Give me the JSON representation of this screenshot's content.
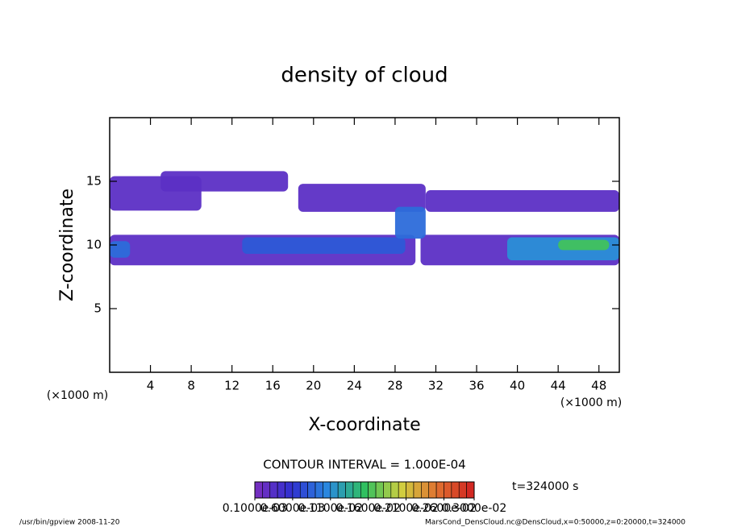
{
  "chart_data": {
    "type": "contour",
    "title": "density of cloud",
    "x_label": "X-coordinate",
    "y_label": "Z-coordinate",
    "x_unit": "(×1000 m)",
    "y_unit": "(×1000 m)",
    "xlim": [
      0,
      50
    ],
    "xticks": [
      4,
      8,
      12,
      16,
      20,
      24,
      28,
      32,
      36,
      40,
      44,
      48
    ],
    "ylim": [
      0,
      20
    ],
    "yticks": [
      5,
      10,
      15
    ],
    "regions": [
      {
        "x": [
          0,
          9
        ],
        "z": [
          12.7,
          15.4
        ],
        "value": 0.0003
      },
      {
        "x": [
          5,
          17.5
        ],
        "z": [
          14.2,
          15.8
        ],
        "value": 0.0003
      },
      {
        "x": [
          18.5,
          31
        ],
        "z": [
          12.6,
          14.8
        ],
        "value": 0.0003
      },
      {
        "x": [
          31,
          50
        ],
        "z": [
          12.6,
          14.3
        ],
        "value": 0.0003
      },
      {
        "x": [
          0,
          30
        ],
        "z": [
          8.4,
          10.8
        ],
        "value": 0.0003
      },
      {
        "x": [
          30.5,
          50
        ],
        "z": [
          8.4,
          10.8
        ],
        "value": 0.0003
      },
      {
        "x": [
          0,
          2
        ],
        "z": [
          9,
          10.3
        ],
        "value": 0.0009
      },
      {
        "x": [
          13,
          29
        ],
        "z": [
          9.3,
          10.6
        ],
        "value": 0.0008
      },
      {
        "x": [
          28,
          31
        ],
        "z": [
          10.5,
          13
        ],
        "value": 0.0009
      },
      {
        "x": [
          39,
          50
        ],
        "z": [
          8.8,
          10.6
        ],
        "value": 0.0011
      },
      {
        "x": [
          44,
          49
        ],
        "z": [
          9.6,
          10.4
        ],
        "value": 0.0016
      }
    ],
    "contour_interval": "CONTOUR INTERVAL = 1.000E-04",
    "time": "t=324000 s",
    "colormap": [
      "#7b2fbe",
      "#3030d0",
      "#2a8ae0",
      "#30c060",
      "#d0d040",
      "#e07030",
      "#d02020"
    ],
    "colorbar": {
      "lim": [
        0.0001,
        0.003
      ],
      "levels": [
        0.0001,
        0.0002,
        0.0003,
        0.0004,
        0.0005,
        0.0006,
        0.0007,
        0.0008,
        0.0009,
        0.001,
        0.0011,
        0.0012,
        0.0013,
        0.0014,
        0.0015,
        0.0016,
        0.0017,
        0.0018,
        0.0019,
        0.002,
        0.0021,
        0.0022,
        0.0023,
        0.0024,
        0.0025,
        0.0026,
        0.0027,
        0.0028,
        0.0029,
        0.003
      ],
      "ticks": [
        {
          "value": 0.0001,
          "label": "0.1000e-03"
        },
        {
          "value": 0.0006,
          "label": "0.6000e-03"
        },
        {
          "value": 0.0011,
          "label": "0.1100e-02"
        },
        {
          "value": 0.0016,
          "label": "0.1600e-02"
        },
        {
          "value": 0.0021,
          "label": "0.2100e-02"
        },
        {
          "value": 0.0026,
          "label": "0.2600e-02"
        },
        {
          "value": 0.003,
          "label": "0.3000e-02"
        }
      ]
    },
    "footer_left": "/usr/bin/gpview  2008-11-20",
    "footer_right": "MarsCond_DensCloud.nc@DensCloud,x=0:50000,z=0:20000,t=324000"
  }
}
